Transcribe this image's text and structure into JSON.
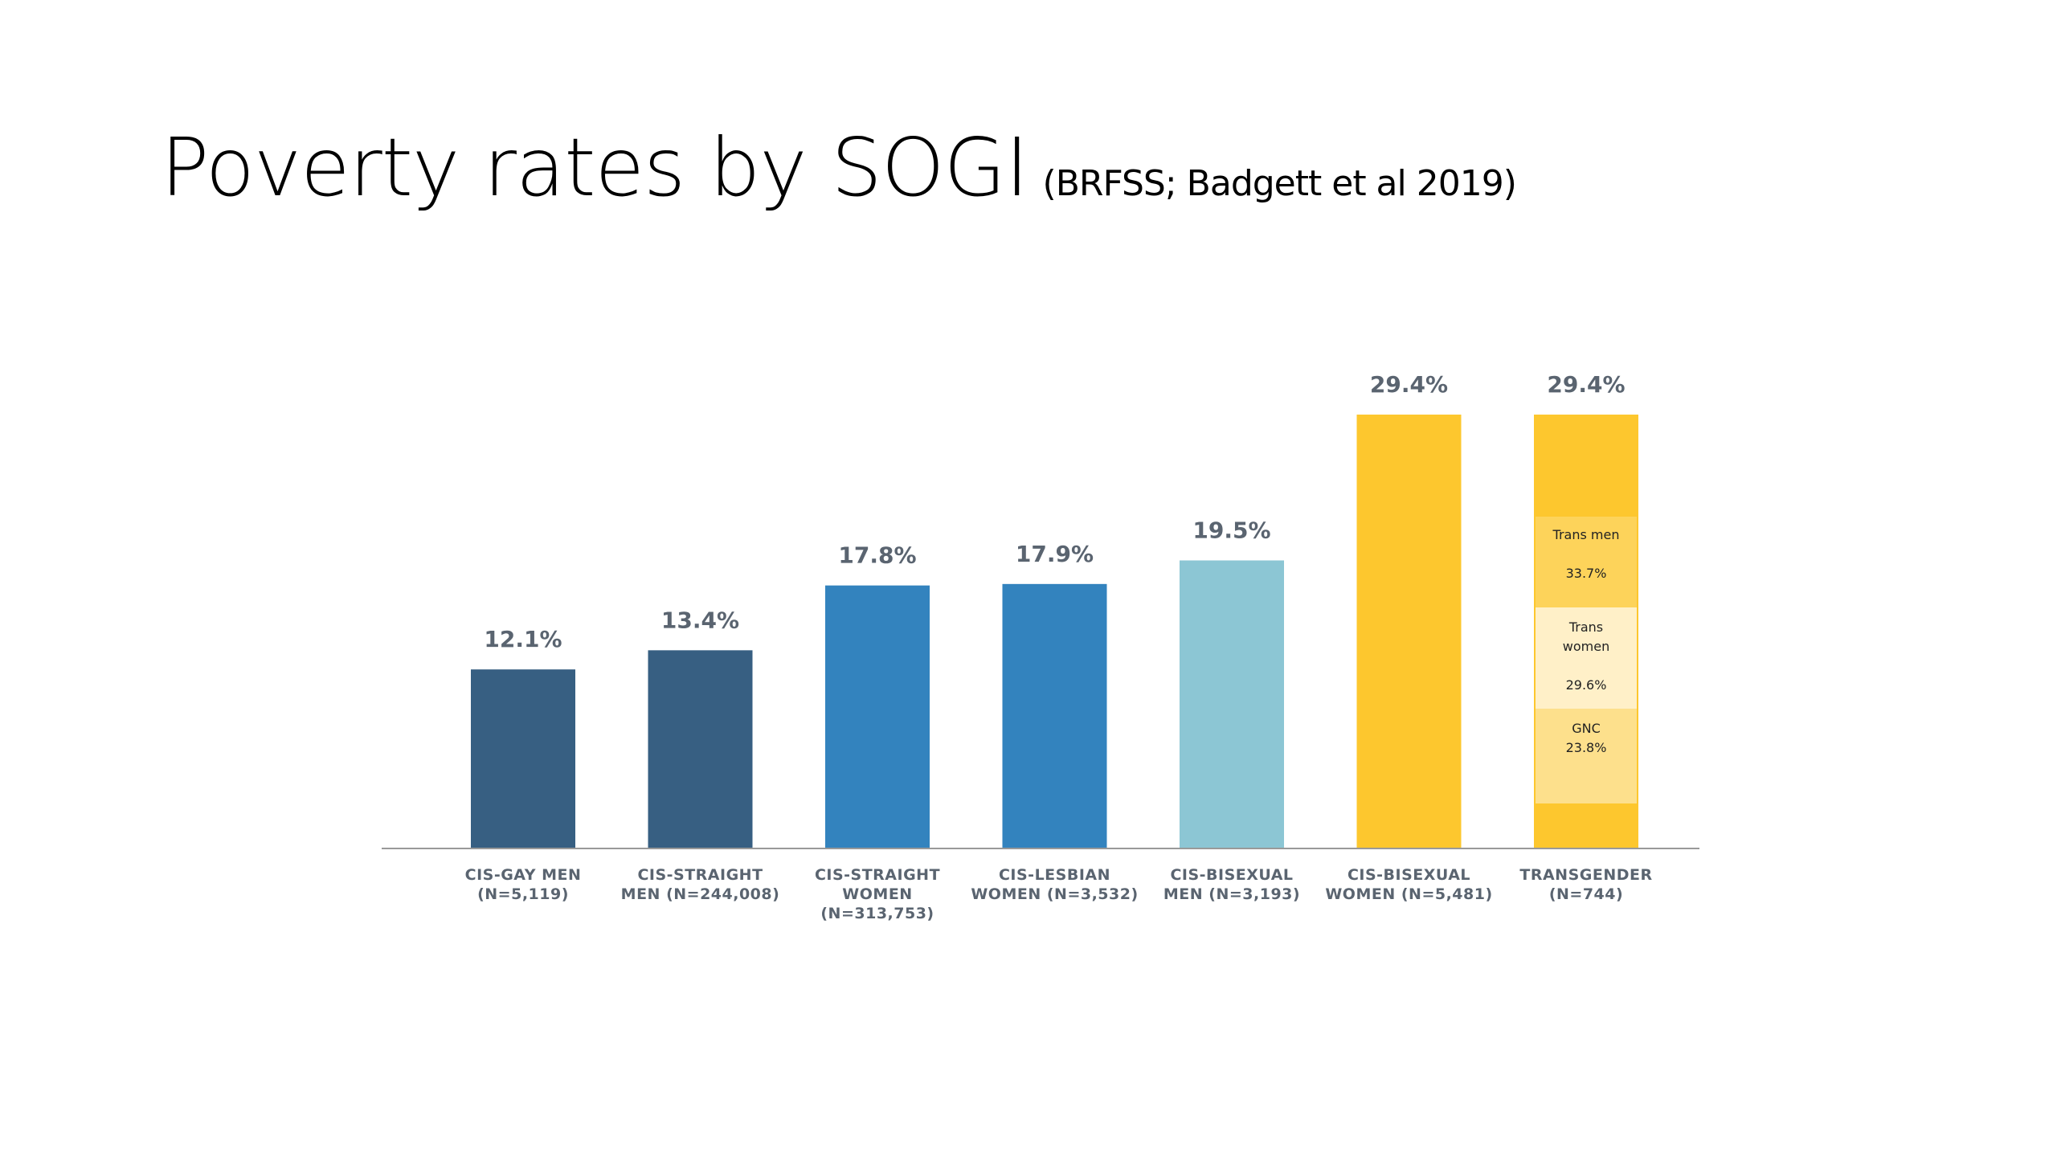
{
  "title": {
    "main": "Poverty rates by SOGI",
    "source": "(BRFSS; Badgett et al 2019)"
  },
  "colors": {
    "dark_blue": "#375f82",
    "mid_blue": "#3383be",
    "light_blue": "#8cc6d4",
    "gold": "#fdc72e",
    "seg_trans_men": "#fdd35a",
    "seg_trans_women": "#fff0c8",
    "seg_gnc": "#fde08c",
    "axis": "#999999"
  },
  "chart_data": {
    "type": "bar",
    "ylim": [
      0,
      30
    ],
    "categories": [
      [
        "CIS-GAY MEN",
        "(N=5,119)"
      ],
      [
        "CIS-STRAIGHT",
        "MEN (N=244,008)"
      ],
      [
        "CIS-STRAIGHT",
        "WOMEN",
        "(N=313,753)"
      ],
      [
        "CIS-LESBIAN",
        "WOMEN (N=3,532)"
      ],
      [
        "CIS-BISEXUAL",
        "MEN (N=3,193)"
      ],
      [
        "CIS-BISEXUAL",
        "WOMEN (N=5,481)"
      ],
      [
        "TRANSGENDER",
        "(N=744)"
      ]
    ],
    "values": [
      12.1,
      13.4,
      17.8,
      17.9,
      19.5,
      29.4,
      29.4
    ],
    "value_labels": [
      "12.1%",
      "13.4%",
      "17.8%",
      "17.9%",
      "19.5%",
      "29.4%",
      "29.4%"
    ],
    "bar_colors": [
      "dark_blue",
      "dark_blue",
      "mid_blue",
      "mid_blue",
      "light_blue",
      "gold",
      "gold"
    ],
    "transgender_breakdown": [
      {
        "name_lines": [
          "Trans men"
        ],
        "value": "33.7%",
        "color": "seg_trans_men"
      },
      {
        "name_lines": [
          "Trans",
          "women"
        ],
        "value": "29.6%",
        "color": "seg_trans_women"
      },
      {
        "name_lines": [
          "GNC"
        ],
        "value": "23.8%",
        "color": "seg_gnc"
      }
    ]
  }
}
